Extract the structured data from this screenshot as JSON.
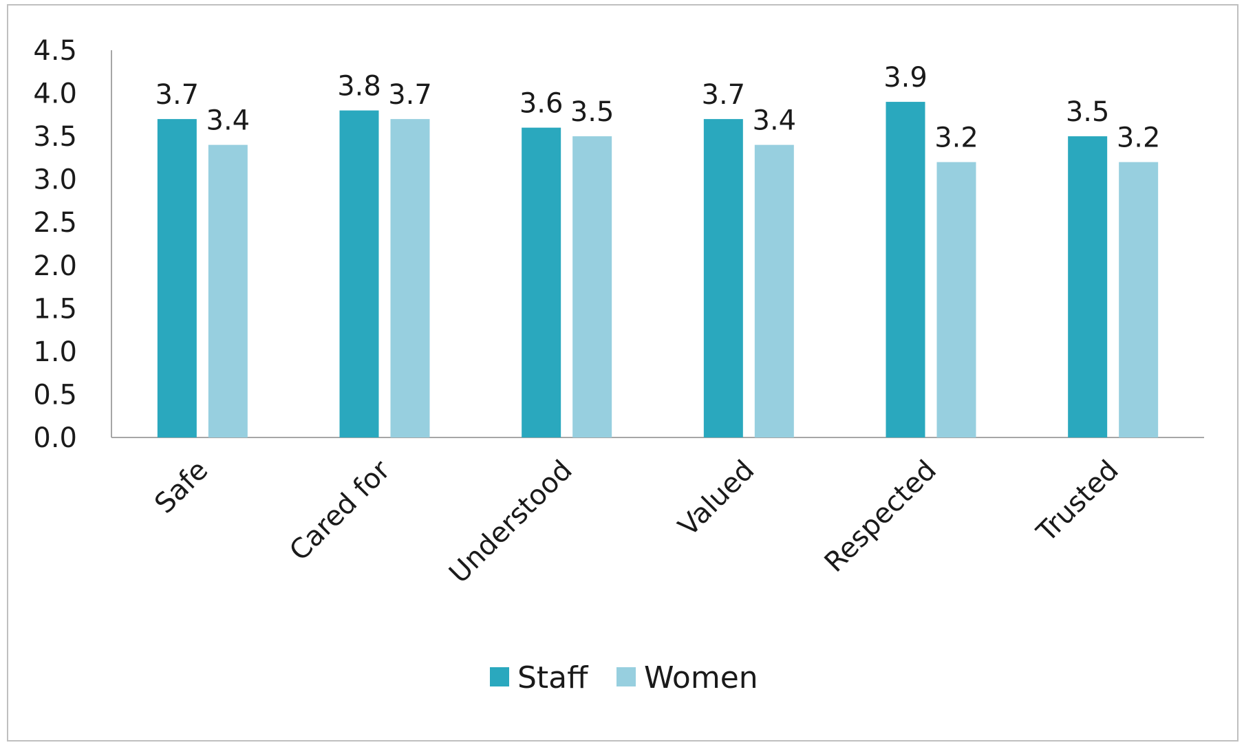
{
  "chart_data": {
    "type": "bar",
    "categories": [
      "Safe",
      "Cared for",
      "Understood",
      "Valued",
      "Respected",
      "Trusted"
    ],
    "series": [
      {
        "name": "Staff",
        "values": [
          3.7,
          3.8,
          3.6,
          3.7,
          3.9,
          3.5
        ],
        "color": "#2aa8be"
      },
      {
        "name": "Women",
        "values": [
          3.4,
          3.7,
          3.5,
          3.4,
          3.2,
          3.2
        ],
        "color": "#97cfdf"
      }
    ],
    "data_labels": [
      [
        "3.7",
        "3.8",
        "3.6",
        "3.7",
        "3.9",
        "3.5"
      ],
      [
        "3.4",
        "3.7",
        "3.5",
        "3.4",
        "3.2",
        "3.2"
      ]
    ],
    "y_ticks": [
      "0.0",
      "0.5",
      "1.0",
      "1.5",
      "2.0",
      "2.5",
      "3.0",
      "3.5",
      "4.0",
      "4.5"
    ],
    "ylim": [
      0,
      4.5
    ],
    "title": "",
    "xlabel": "",
    "ylabel": "",
    "grid": false,
    "legend_position": "bottom"
  }
}
